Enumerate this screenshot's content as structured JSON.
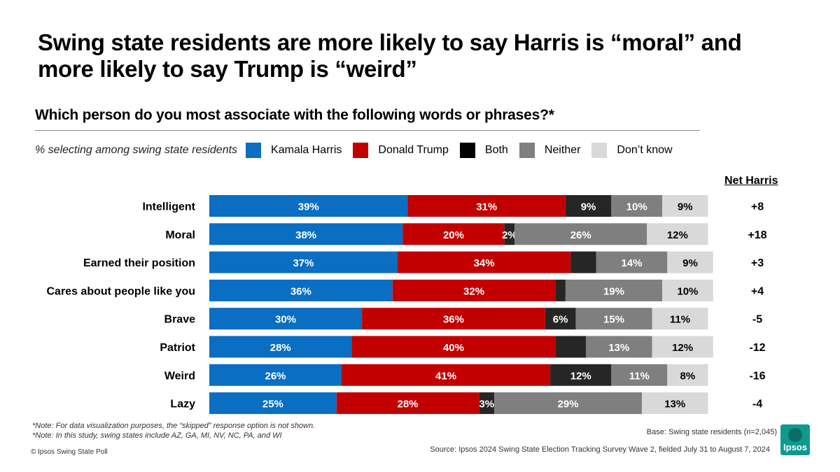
{
  "title_lines": [
    "Swing state residents are more likely to say Harris is “moral” and",
    "more likely to say Trump is “weird”"
  ],
  "question": "Which person do you most associate with the following words or phrases?*",
  "legend_note": "% selecting among swing state residents",
  "net_header": "Net Harris",
  "notes": [
    "*Note: For data visualization purposes, the “skipped” response option is not shown.",
    "*Note: In this study, swing states include  AZ, GA, MI, NV, NC, PA, and WI"
  ],
  "copyright": "© Ipsos Swing State Poll",
  "base": "Base: Swing state residents (n=2,045)",
  "source": "Source: Ipsos 2024 Swing State Election Tracking Survey Wave 2, fielded July 31 to August 7, 2024",
  "logo_text": "Ipsos",
  "chart_data": {
    "type": "bar",
    "orientation": "horizontal",
    "stacked": true,
    "categories": [
      "Intelligent",
      "Moral",
      "Earned their position",
      "Cares about people like you",
      "Brave",
      "Patriot",
      "Weird",
      "Lazy"
    ],
    "series": [
      {
        "name": "Kamala Harris",
        "color": "#0a6ec2",
        "values": [
          39,
          38,
          37,
          36,
          30,
          28,
          26,
          25
        ],
        "labels": [
          "39%",
          "38%",
          "37%",
          "36%",
          "30%",
          "28%",
          "26%",
          "25%"
        ]
      },
      {
        "name": "Donald Trump",
        "color": "#c20000",
        "values": [
          31,
          20,
          34,
          32,
          36,
          40,
          41,
          28
        ],
        "labels": [
          "31%",
          "20%",
          "34%",
          "32%",
          "36%",
          "40%",
          "41%",
          "28%"
        ]
      },
      {
        "name": "Both",
        "color": "#262626",
        "values": [
          9,
          2,
          5,
          2,
          6,
          6,
          12,
          3
        ],
        "labels": [
          "9%",
          "2%",
          "",
          "",
          "6%",
          "",
          "12%",
          "3%"
        ]
      },
      {
        "name": "Neither",
        "color": "#7f7f7f",
        "values": [
          10,
          26,
          14,
          19,
          15,
          13,
          11,
          29
        ],
        "labels": [
          "10%",
          "26%",
          "14%",
          "19%",
          "15%",
          "13%",
          "11%",
          "29%"
        ]
      },
      {
        "name": "Don’t know",
        "color": "#d9d9d9",
        "values": [
          9,
          12,
          9,
          10,
          11,
          12,
          8,
          13
        ],
        "labels": [
          "9%",
          "12%",
          "9%",
          "10%",
          "11%",
          "12%",
          "8%",
          "13%"
        ]
      }
    ],
    "net_harris": [
      "+8",
      "+18",
      "+3",
      "+4",
      "-5",
      "-12",
      "-16",
      "-4"
    ],
    "xlim": [
      0,
      100
    ]
  }
}
